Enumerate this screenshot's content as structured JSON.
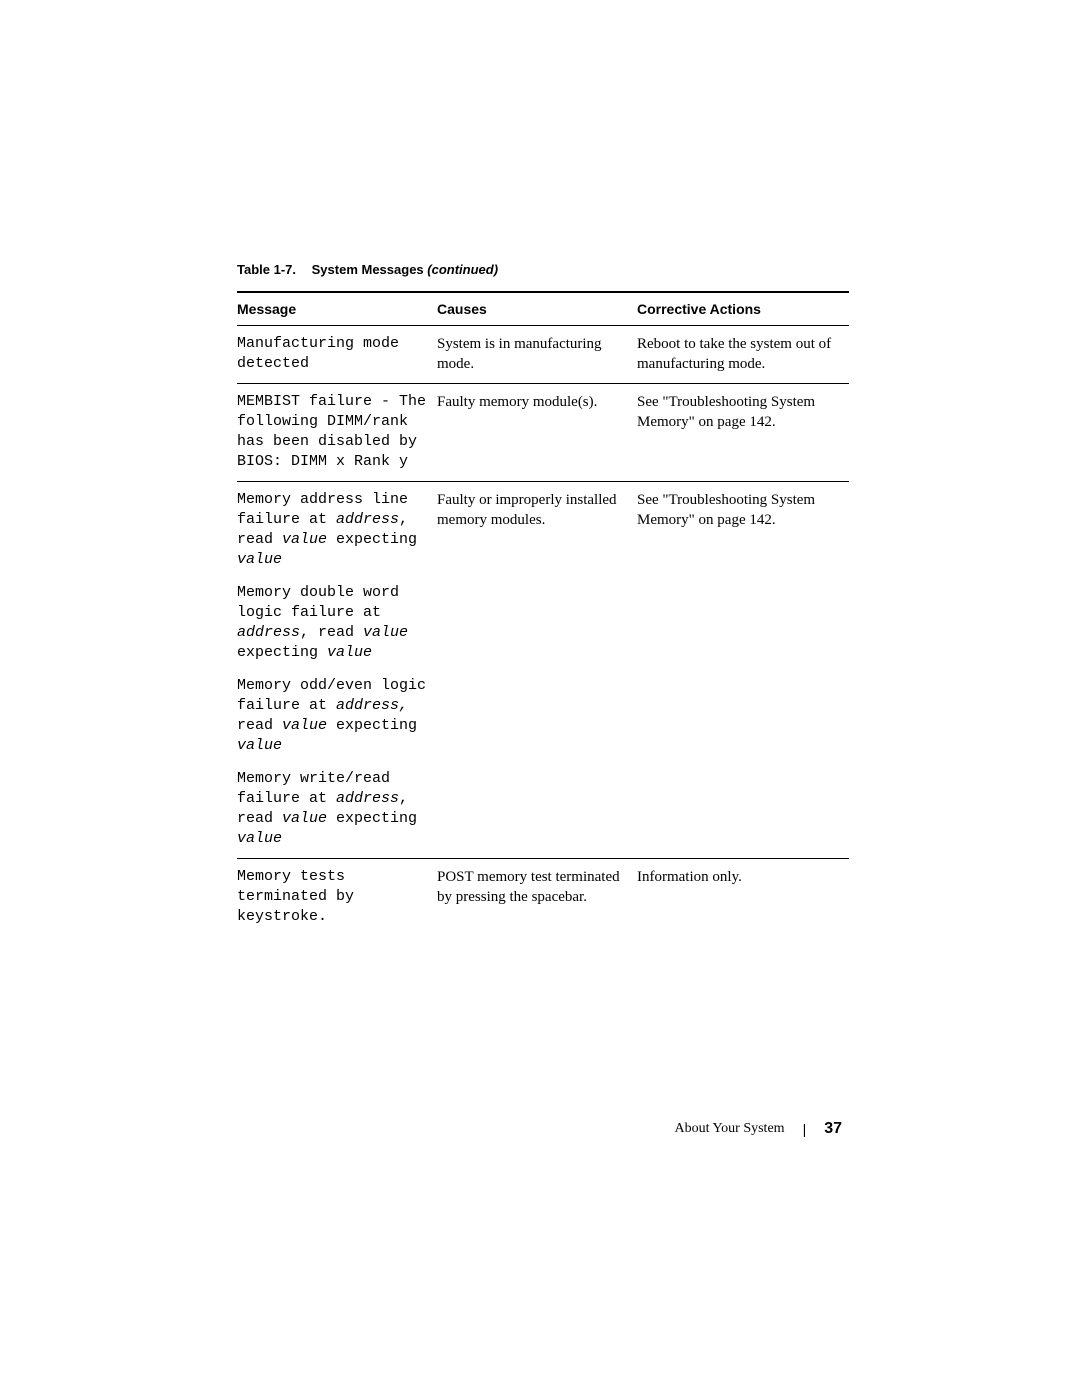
{
  "table": {
    "caption_number": "Table 1-7.",
    "caption_title": "System Messages ",
    "caption_continued": "(continued)",
    "headers": {
      "message": "Message",
      "causes": "Causes",
      "actions": "Corrective Actions"
    },
    "rows": [
      {
        "message_parts": [
          {
            "text": "Manufacturing mode detected",
            "mono": true,
            "italic": false
          }
        ],
        "causes": "System is in manufacturing mode.",
        "actions": "Reboot to take the system out of manufacturing mode."
      },
      {
        "message_parts": [
          {
            "text": "MEMBIST failure - The following DIMM/rank has been disabled by BIOS: DIMM x Rank y",
            "mono": true,
            "italic": false
          }
        ],
        "causes": "Faulty memory module(s).",
        "actions": "See \"Troubleshooting System Memory\" on page 142."
      },
      {
        "message_blocks": [
          [
            {
              "text": "Memory address line failure at ",
              "mono": true,
              "italic": false
            },
            {
              "text": "address",
              "mono": true,
              "italic": true
            },
            {
              "text": ", read ",
              "mono": true,
              "italic": false
            },
            {
              "text": "value",
              "mono": true,
              "italic": true
            },
            {
              "text": " expecting ",
              "mono": true,
              "italic": false
            },
            {
              "text": "value",
              "mono": true,
              "italic": true
            }
          ],
          [
            {
              "text": "Memory double word logic failure at ",
              "mono": true,
              "italic": false
            },
            {
              "text": "address",
              "mono": true,
              "italic": true
            },
            {
              "text": ", read ",
              "mono": true,
              "italic": false
            },
            {
              "text": "value",
              "mono": true,
              "italic": true
            },
            {
              "text": " expecting ",
              "mono": true,
              "italic": false
            },
            {
              "text": "value",
              "mono": true,
              "italic": true
            }
          ],
          [
            {
              "text": "Memory odd/even logic failure at ",
              "mono": true,
              "italic": false
            },
            {
              "text": "address,",
              "mono": true,
              "italic": true
            },
            {
              "text": " read ",
              "mono": true,
              "italic": false
            },
            {
              "text": "value",
              "mono": true,
              "italic": true
            },
            {
              "text": " expecting ",
              "mono": true,
              "italic": false
            },
            {
              "text": "value",
              "mono": true,
              "italic": true
            }
          ],
          [
            {
              "text": "Memory write/read failure at ",
              "mono": true,
              "italic": false
            },
            {
              "text": "address",
              "mono": true,
              "italic": true
            },
            {
              "text": ", read ",
              "mono": true,
              "italic": false
            },
            {
              "text": "value",
              "mono": true,
              "italic": true
            },
            {
              "text": " expecting ",
              "mono": true,
              "italic": false
            },
            {
              "text": "value",
              "mono": true,
              "italic": true
            }
          ]
        ],
        "causes": "Faulty or improperly installed memory modules.",
        "actions": "See \"Troubleshooting System Memory\" on page 142."
      },
      {
        "message_parts": [
          {
            "text": "Memory tests terminated by keystroke.",
            "mono": true,
            "italic": false
          }
        ],
        "causes": "POST memory test terminated by pressing the spacebar.",
        "actions": "Information only."
      }
    ]
  },
  "footer": {
    "section": "About Your System",
    "divider": "|",
    "page": "37"
  }
}
